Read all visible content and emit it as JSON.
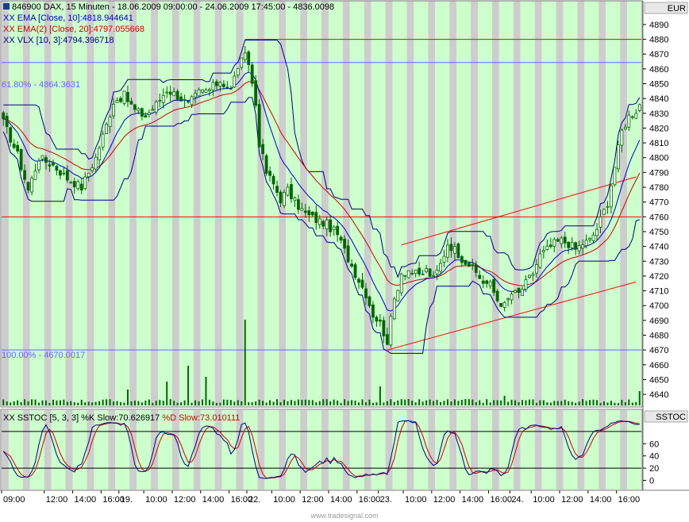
{
  "header": {
    "title": "846900 DAX, 15 Minuten - 18.06.2009 09:00:00 - 24.06.2009 17:45:00 - 4836.0098",
    "ema10": "XX EMA [Close, 10]:4818.944641",
    "ema20": "XX EMA(2) [Close, 20]:4797.055668",
    "vlx": "XX VLX [10, 3]:4794.396718",
    "currency": "EUR"
  },
  "fib": {
    "label_618": "61.80% - 4864.3631",
    "label_100": "100.00% - 4670.0017"
  },
  "stoch": {
    "label_prefix": "XX SSTOC [5, 3, 3] %K Slow:70.626917 ",
    "label_d": "%D Slow:73.010111",
    "axis_title": "SSTOC"
  },
  "watermark": "www.tradesignal.com",
  "colors": {
    "band_green": "#ccffcc",
    "band_gray": "#c8c8c8",
    "candle": "#006600",
    "ema10": "#0000cc",
    "ema20": "#cc0000",
    "trend": "#ff0000",
    "fib": "#6666ff"
  },
  "chart_data": {
    "type": "candlestick",
    "price_axis": {
      "ticks": [
        4640,
        4650,
        4660,
        4670,
        4680,
        4690,
        4700,
        4710,
        4720,
        4730,
        4740,
        4750,
        4760,
        4770,
        4780,
        4790,
        4800,
        4810,
        4820,
        4830,
        4840,
        4850,
        4860,
        4870,
        4880,
        4890
      ],
      "range": [
        4632,
        4898
      ]
    },
    "stoch_axis": {
      "ticks": [
        0,
        20,
        40,
        60
      ],
      "range": [
        -15,
        115
      ]
    },
    "x_axis_labels": [
      "09:00",
      "12:00",
      "14:00",
      "16:00",
      "19.",
      "10:00",
      "12:00",
      "14:00",
      "16:00",
      "22.",
      "10:00",
      "12:00",
      "14:00",
      "16:00",
      "23.",
      "10:00",
      "12:00",
      "14:00",
      "16:00",
      "24.",
      "10:00",
      "12:00",
      "14:00",
      "16:00"
    ],
    "x_label_positions": [
      0,
      12,
      20,
      28,
      33,
      40,
      48,
      56,
      64,
      69,
      76,
      84,
      92,
      100,
      106,
      113,
      121,
      129,
      137,
      143,
      149,
      157,
      165,
      173
    ],
    "bar_count": 180,
    "horizontal_levels": [
      4880,
      4864.3631,
      4760,
      4670.0017
    ],
    "stoch_levels": [
      80,
      20
    ],
    "price_anchors": [
      [
        0,
        4824
      ],
      [
        4,
        4802
      ],
      [
        7,
        4778
      ],
      [
        10,
        4800
      ],
      [
        14,
        4795
      ],
      [
        18,
        4786
      ],
      [
        22,
        4780
      ],
      [
        26,
        4800
      ],
      [
        29,
        4822
      ],
      [
        31,
        4838
      ],
      [
        34,
        4842
      ],
      [
        37,
        4832
      ],
      [
        40,
        4828
      ],
      [
        43,
        4836
      ],
      [
        46,
        4846
      ],
      [
        49,
        4842
      ],
      [
        52,
        4836
      ],
      [
        55,
        4844
      ],
      [
        58,
        4846
      ],
      [
        61,
        4852
      ],
      [
        64,
        4846
      ],
      [
        66,
        4862
      ],
      [
        68,
        4868
      ],
      [
        69,
        4864
      ],
      [
        71,
        4836
      ],
      [
        72,
        4810
      ],
      [
        74,
        4790
      ],
      [
        76,
        4782
      ],
      [
        78,
        4772
      ],
      [
        80,
        4778
      ],
      [
        82,
        4770
      ],
      [
        85,
        4762
      ],
      [
        88,
        4758
      ],
      [
        91,
        4755
      ],
      [
        94,
        4748
      ],
      [
        96,
        4737
      ],
      [
        99,
        4722
      ],
      [
        102,
        4708
      ],
      [
        104,
        4694
      ],
      [
        106,
        4688
      ],
      [
        108,
        4676
      ],
      [
        110,
        4704
      ],
      [
        112,
        4722
      ],
      [
        114,
        4724
      ],
      [
        117,
        4720
      ],
      [
        119,
        4724
      ],
      [
        121,
        4718
      ],
      [
        123,
        4728
      ],
      [
        125,
        4742
      ],
      [
        127,
        4738
      ],
      [
        129,
        4732
      ],
      [
        131,
        4728
      ],
      [
        133,
        4722
      ],
      [
        135,
        4716
      ],
      [
        137,
        4714
      ],
      [
        139,
        4704
      ],
      [
        141,
        4700
      ],
      [
        143,
        4708
      ],
      [
        145,
        4708
      ],
      [
        147,
        4715
      ],
      [
        149,
        4722
      ],
      [
        151,
        4734
      ],
      [
        153,
        4738
      ],
      [
        155,
        4742
      ],
      [
        157,
        4744
      ],
      [
        159,
        4742
      ],
      [
        161,
        4738
      ],
      [
        163,
        4742
      ],
      [
        165,
        4744
      ],
      [
        167,
        4752
      ],
      [
        169,
        4764
      ],
      [
        170,
        4770
      ],
      [
        172,
        4794
      ],
      [
        174,
        4818
      ],
      [
        176,
        4828
      ],
      [
        178,
        4832
      ],
      [
        179,
        4836
      ]
    ],
    "volume_spikes": [
      [
        52,
        50
      ],
      [
        68,
        108
      ],
      [
        57,
        36
      ],
      [
        46,
        30
      ],
      [
        35,
        20
      ],
      [
        106,
        24
      ],
      [
        179,
        18
      ],
      [
        141,
        12
      ]
    ],
    "series": [
      {
        "name": "XX EMA [Close, 10]",
        "last": 4818.944641
      },
      {
        "name": "XX EMA(2) [Close, 20]",
        "last": 4797.055668
      },
      {
        "name": "XX VLX [10, 3]",
        "last": 4794.396718
      },
      {
        "name": "%K Slow",
        "last": 70.626917
      },
      {
        "name": "%D Slow",
        "last": 73.010111
      }
    ]
  }
}
